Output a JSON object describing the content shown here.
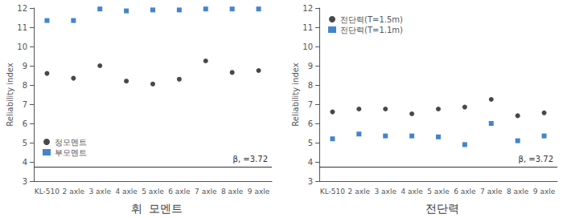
{
  "chart_data": [
    {
      "type": "scatter",
      "title": "휘  모멘트",
      "categories": [
        "KL-510",
        "2 axle",
        "3 axle",
        "4 axle",
        "5 axle",
        "6 axle",
        "7 axle",
        "8 axle",
        "9 axle"
      ],
      "series": [
        {
          "name": "정모멘트",
          "color": "#1a1a1a",
          "marker": "circle",
          "values": [
            8.6,
            8.35,
            9.0,
            8.2,
            8.05,
            8.3,
            9.25,
            8.65,
            8.75
          ]
        },
        {
          "name": "부모멘트",
          "color": "#1565c0",
          "marker": "square",
          "values": [
            11.35,
            11.35,
            11.95,
            11.85,
            11.9,
            11.9,
            11.95,
            11.95,
            11.95
          ]
        }
      ],
      "ylabel": "Reliability index",
      "ylim": [
        3,
        12
      ],
      "yticks": [
        3,
        4,
        5,
        6,
        7,
        8,
        9,
        10,
        11,
        12
      ],
      "grid": false,
      "legend": "lower left",
      "annotations": [
        {
          "text": "β, =3.72",
          "y": 3.72,
          "color": "#333333"
        }
      ]
    },
    {
      "type": "scatter",
      "title": "전단력",
      "categories": [
        "KL-510",
        "2 axle",
        "3 axle",
        "4 axle",
        "5 axle",
        "6 axle",
        "7 axle",
        "8 axle",
        "9 axle"
      ],
      "series": [
        {
          "name": "전단력(T=1.5m)",
          "color": "#1a1a1a",
          "marker": "circle",
          "values": [
            6.6,
            6.75,
            6.75,
            6.5,
            6.75,
            6.85,
            7.25,
            6.4,
            6.55
          ]
        },
        {
          "name": "전단력(T=1.1m)",
          "color": "#1565c0",
          "marker": "square",
          "values": [
            5.2,
            5.45,
            5.35,
            5.35,
            5.3,
            4.9,
            6.0,
            5.1,
            5.35
          ]
        }
      ],
      "ylabel": "Reliability index",
      "ylim": [
        3,
        12
      ],
      "yticks": [
        3,
        4,
        5,
        6,
        7,
        8,
        9,
        10,
        11,
        12
      ],
      "grid": false,
      "legend": "upper left",
      "annotations": [
        {
          "text": "β, =3.72",
          "y": 3.72,
          "color": "#333333"
        }
      ]
    }
  ]
}
